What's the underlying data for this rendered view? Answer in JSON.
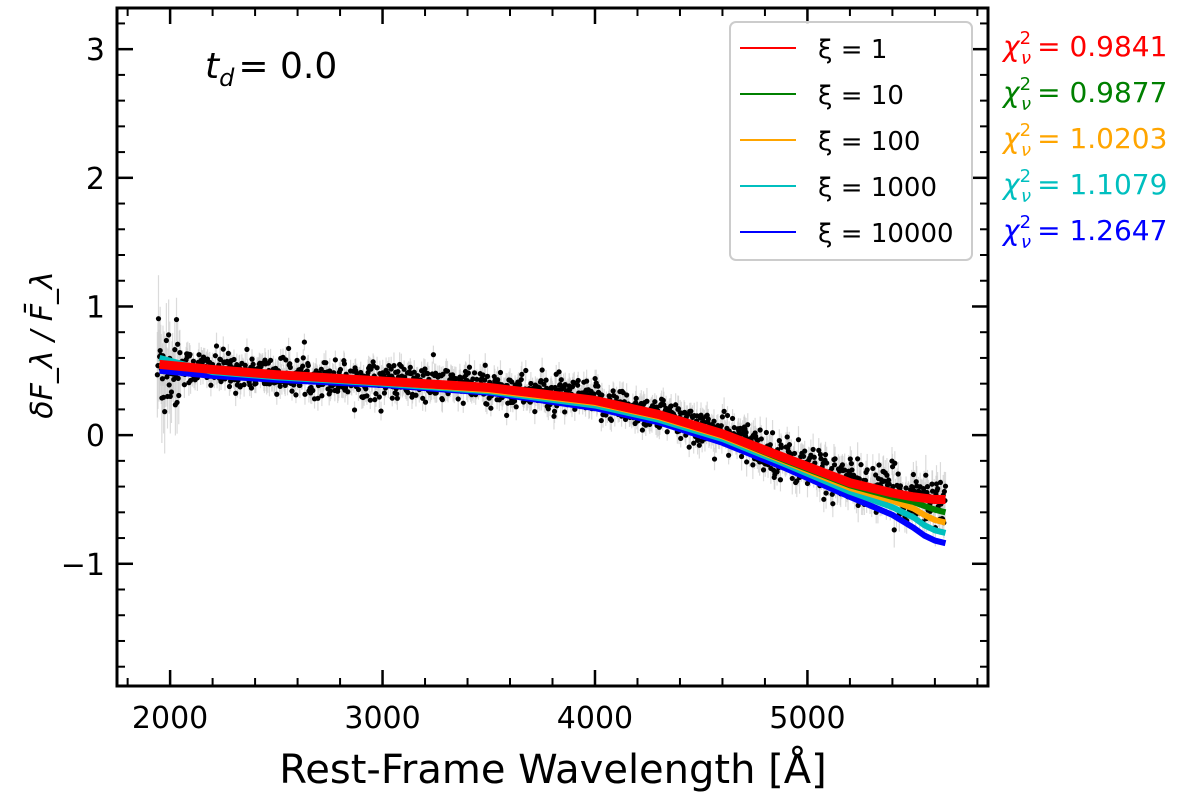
{
  "chart_data": {
    "type": "scatter",
    "xlabel": "Rest-Frame Wavelength [Å]",
    "ylabel": "δF_λ / F̄_λ",
    "xlim": [
      1750,
      5850
    ],
    "ylim": [
      -1.95,
      3.32
    ],
    "xticks": [
      2000,
      3000,
      4000,
      5000
    ],
    "yticks": [
      -1,
      0,
      1,
      2,
      3
    ],
    "ytick_labels": [
      "−1",
      "0",
      "1",
      "2",
      "3"
    ],
    "grid": false,
    "legend_position": "top-right",
    "annotation": {
      "text_symbol": "t",
      "text_subscript": "d",
      "text_value": "=  0.0"
    },
    "data_x_range": [
      1940,
      5650
    ],
    "series": [
      {
        "name": "ξ = 1",
        "color": "#ff0000",
        "chi2": "0.9841",
        "x": [
          1950,
          2200,
          2500,
          3000,
          3500,
          4000,
          4300,
          4600,
          4900,
          5200,
          5400,
          5500,
          5550,
          5600,
          5650
        ],
        "y": [
          0.55,
          0.51,
          0.47,
          0.42,
          0.37,
          0.27,
          0.16,
          0.01,
          -0.18,
          -0.37,
          -0.45,
          -0.48,
          -0.49,
          -0.5,
          -0.5
        ]
      },
      {
        "name": "ξ = 10",
        "color": "#008000",
        "chi2": "0.9877",
        "x": [
          1950,
          2200,
          2500,
          3000,
          3500,
          4000,
          4300,
          4600,
          4900,
          5200,
          5400,
          5500,
          5550,
          5600,
          5650
        ],
        "y": [
          0.54,
          0.5,
          0.46,
          0.41,
          0.36,
          0.26,
          0.15,
          0.0,
          -0.2,
          -0.39,
          -0.48,
          -0.52,
          -0.55,
          -0.58,
          -0.6
        ]
      },
      {
        "name": "ξ = 100",
        "color": "#ffa500",
        "chi2": "1.0203",
        "x": [
          1950,
          2200,
          2500,
          3000,
          3500,
          4000,
          4300,
          4600,
          4900,
          5200,
          5400,
          5500,
          5550,
          5600,
          5650
        ],
        "y": [
          0.56,
          0.5,
          0.46,
          0.41,
          0.35,
          0.25,
          0.14,
          -0.01,
          -0.21,
          -0.41,
          -0.51,
          -0.57,
          -0.62,
          -0.66,
          -0.68
        ]
      },
      {
        "name": "ξ = 1000",
        "color": "#00bfbf",
        "chi2": "1.1079",
        "x": [
          1950,
          2200,
          2500,
          3000,
          3500,
          4000,
          4300,
          4600,
          4900,
          5200,
          5400,
          5500,
          5550,
          5600,
          5650
        ],
        "y": [
          0.6,
          0.49,
          0.45,
          0.4,
          0.34,
          0.23,
          0.12,
          -0.03,
          -0.23,
          -0.44,
          -0.56,
          -0.64,
          -0.7,
          -0.74,
          -0.76
        ]
      },
      {
        "name": "ξ = 10000",
        "color": "#0000ff",
        "chi2": "1.2647",
        "x": [
          1950,
          2200,
          2500,
          3000,
          3500,
          4000,
          4300,
          4600,
          4900,
          5200,
          5400,
          5500,
          5550,
          5600,
          5650
        ],
        "y": [
          0.5,
          0.46,
          0.43,
          0.39,
          0.33,
          0.21,
          0.1,
          -0.06,
          -0.26,
          -0.48,
          -0.62,
          -0.72,
          -0.78,
          -0.82,
          -0.84
        ]
      }
    ],
    "chi_label": "χ²_ν ="
  }
}
